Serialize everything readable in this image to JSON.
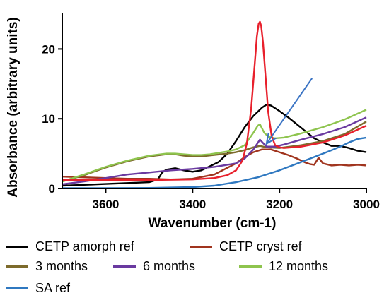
{
  "chart_data": {
    "type": "line",
    "xlabel": "Wavenumber (cm-1)",
    "ylabel": "Absorbance (arbitrary units)",
    "xlim": [
      3700,
      3000
    ],
    "ylim": [
      0,
      25
    ],
    "x_reversed": true,
    "x_ticks": [
      3600,
      3400,
      3200,
      3000
    ],
    "y_ticks": [
      0,
      10,
      20
    ],
    "grid": false,
    "legend_position": "bottom",
    "annotation": {
      "type": "arrow",
      "from": [
        3125,
        15.8
      ],
      "to": [
        3230,
        6.4
      ],
      "color": "#3b74c4"
    },
    "series": [
      {
        "name": "CETP amorph ref",
        "color": "#000000",
        "x": [
          3700,
          3660,
          3620,
          3580,
          3540,
          3500,
          3480,
          3470,
          3460,
          3440,
          3420,
          3400,
          3380,
          3360,
          3340,
          3320,
          3300,
          3280,
          3260,
          3240,
          3230,
          3220,
          3200,
          3180,
          3160,
          3140,
          3120,
          3100,
          3080,
          3060,
          3040,
          3020,
          3000
        ],
        "y": [
          0.4,
          0.5,
          0.6,
          0.7,
          0.8,
          0.9,
          1.3,
          2.3,
          2.7,
          2.9,
          2.6,
          2.4,
          2.6,
          3.2,
          3.8,
          5.0,
          6.8,
          8.8,
          10.4,
          11.6,
          12.0,
          11.9,
          11.1,
          10.2,
          9.2,
          8.2,
          7.2,
          6.6,
          6.1,
          6.1,
          5.8,
          5.4,
          5.2
        ]
      },
      {
        "name": "CETP cryst ref",
        "color": "#a0341e",
        "x": [
          3700,
          3650,
          3600,
          3550,
          3500,
          3450,
          3400,
          3350,
          3300,
          3280,
          3260,
          3240,
          3220,
          3200,
          3180,
          3160,
          3140,
          3130,
          3120,
          3110,
          3100,
          3080,
          3060,
          3040,
          3020,
          3000
        ],
        "y": [
          1.7,
          1.6,
          1.5,
          1.4,
          1.4,
          1.3,
          1.4,
          2.0,
          3.6,
          4.5,
          5.2,
          5.6,
          5.6,
          5.2,
          4.8,
          4.3,
          3.7,
          3.5,
          3.4,
          4.4,
          3.6,
          3.3,
          3.4,
          3.3,
          3.4,
          3.3
        ]
      },
      {
        "name": "3 months",
        "color": "#7d6b2c",
        "x": [
          3700,
          3650,
          3600,
          3550,
          3500,
          3460,
          3440,
          3420,
          3400,
          3380,
          3350,
          3320,
          3300,
          3280,
          3260,
          3245,
          3230,
          3200,
          3150,
          3100,
          3050,
          3000
        ],
        "y": [
          1.0,
          1.9,
          3.0,
          3.9,
          4.6,
          4.9,
          4.9,
          4.7,
          4.6,
          4.6,
          4.8,
          5.0,
          5.2,
          5.5,
          5.9,
          6.1,
          5.9,
          5.8,
          6.2,
          6.8,
          7.8,
          9.6
        ]
      },
      {
        "name": "6 months",
        "color": "#6a3aa0",
        "x": [
          3700,
          3650,
          3600,
          3550,
          3500,
          3450,
          3400,
          3350,
          3300,
          3280,
          3260,
          3245,
          3230,
          3210,
          3190,
          3150,
          3100,
          3050,
          3000
        ],
        "y": [
          0.6,
          1.0,
          1.5,
          2.0,
          2.3,
          2.6,
          2.8,
          3.1,
          3.6,
          4.3,
          5.6,
          7.0,
          6.0,
          6.0,
          6.3,
          7.0,
          7.8,
          8.8,
          10.2
        ]
      },
      {
        "name": "12 months",
        "color": "#8ec44e",
        "x": [
          3700,
          3650,
          3600,
          3550,
          3500,
          3460,
          3440,
          3420,
          3400,
          3380,
          3360,
          3340,
          3320,
          3300,
          3280,
          3260,
          3250,
          3245,
          3235,
          3225,
          3210,
          3190,
          3150,
          3100,
          3050,
          3000
        ],
        "y": [
          1.0,
          2.0,
          3.1,
          4.0,
          4.7,
          5.0,
          5.0,
          4.9,
          4.8,
          4.8,
          4.9,
          5.1,
          5.3,
          5.6,
          6.2,
          8.0,
          9.0,
          9.2,
          8.0,
          7.4,
          7.2,
          7.3,
          7.9,
          8.8,
          9.9,
          11.3
        ]
      },
      {
        "name": "SA ref",
        "color": "#2f78c0",
        "x": [
          3700,
          3600,
          3500,
          3400,
          3350,
          3300,
          3250,
          3200,
          3150,
          3100,
          3080,
          3060,
          3040,
          3020,
          3000
        ],
        "y": [
          0.05,
          0.05,
          0.08,
          0.2,
          0.4,
          0.9,
          1.6,
          2.6,
          3.8,
          5.0,
          5.5,
          6.0,
          6.6,
          7.1,
          7.3
        ]
      },
      {
        "name": "",
        "color": "#e8202c",
        "x": [
          3700,
          3600,
          3500,
          3400,
          3350,
          3320,
          3300,
          3285,
          3275,
          3265,
          3258,
          3252,
          3248,
          3245,
          3242,
          3238,
          3232,
          3226,
          3218,
          3210,
          3200,
          3190,
          3170,
          3150,
          3100,
          3050,
          3000
        ],
        "y": [
          1.2,
          1.2,
          1.2,
          1.3,
          1.5,
          1.9,
          2.6,
          4.0,
          6.5,
          11.5,
          17.0,
          21.8,
          23.6,
          23.9,
          23.3,
          21.0,
          16.0,
          11.0,
          7.5,
          6.2,
          5.9,
          5.8,
          5.9,
          6.0,
          6.6,
          7.6,
          9.0
        ]
      }
    ]
  }
}
